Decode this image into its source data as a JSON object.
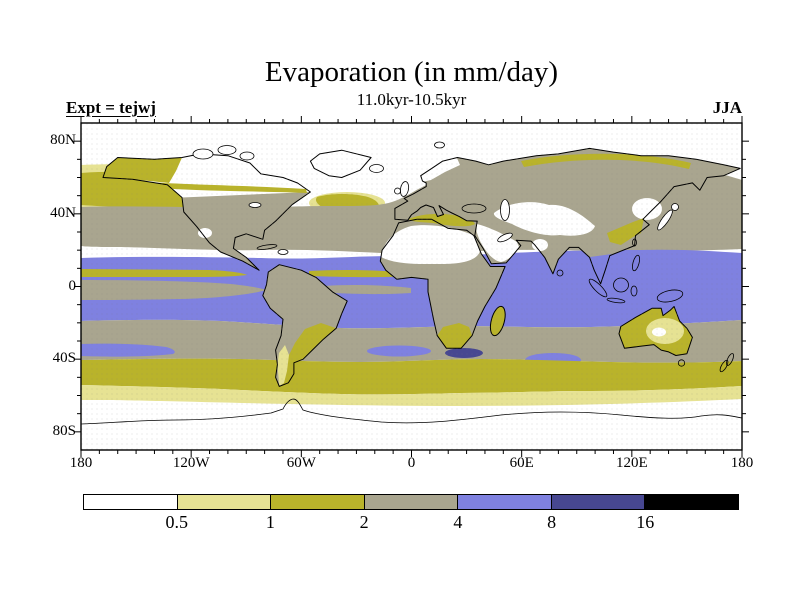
{
  "header": {
    "title": "Evaporation (in mm/day)",
    "subtitle": "11.0kyr-10.5kyr",
    "experiment_label": "Expt = tejwj",
    "season": "JJA"
  },
  "axes": {
    "lat_ticks": [
      {
        "label": "80N",
        "deg": 80
      },
      {
        "label": "40N",
        "deg": 40
      },
      {
        "label": "0",
        "deg": 0
      },
      {
        "label": "40S",
        "deg": -40
      },
      {
        "label": "80S",
        "deg": -80
      }
    ],
    "lon_ticks": [
      {
        "label": "180",
        "deg": -180
      },
      {
        "label": "120W",
        "deg": -120
      },
      {
        "label": "60W",
        "deg": -60
      },
      {
        "label": "0",
        "deg": 0
      },
      {
        "label": "60E",
        "deg": 60
      },
      {
        "label": "120E",
        "deg": 120
      },
      {
        "label": "180",
        "deg": 180
      }
    ]
  },
  "colorbar": {
    "labels": [
      "0.5",
      "1",
      "2",
      "4",
      "8",
      "16"
    ],
    "segments": [
      {
        "range": "< 0.5",
        "color": "#ffffff"
      },
      {
        "range": "0.5-1",
        "color": "#e6e293"
      },
      {
        "range": "1-2",
        "color": "#b9b32b"
      },
      {
        "range": "2-4",
        "color": "#a9a58f"
      },
      {
        "range": "4-8",
        "color": "#7f81e0"
      },
      {
        "range": "8-16",
        "color": "#474791"
      },
      {
        "range": "> 16",
        "color": "#000000"
      }
    ]
  },
  "palette": {
    "white": "#ffffff",
    "pale": "#e6e293",
    "olive": "#b9b32b",
    "gray": "#a9a58f",
    "blue": "#7f81e0",
    "darkblue": "#474791",
    "black": "#000000"
  },
  "chart_data": {
    "type": "heatmap",
    "subtype": "filled-contour-world-map",
    "title": "Evaporation (in mm/day)",
    "subtitle": "11.0kyr-10.5kyr",
    "variable": "Evaporation",
    "units": "mm/day",
    "experiment": "tejwj",
    "season": "JJA",
    "projection": "equirectangular",
    "lon_range": [
      -180,
      180
    ],
    "lat_range": [
      -90,
      90
    ],
    "contour_levels": [
      0.5,
      1,
      2,
      4,
      8,
      16
    ],
    "level_colors": [
      "#ffffff",
      "#e6e293",
      "#b9b32b",
      "#a9a58f",
      "#7f81e0",
      "#474791",
      "#000000"
    ],
    "legend_position": "bottom",
    "grid": false,
    "zonal_summary": [
      {
        "lat_band": "90N-65N (Arctic, Greenland, polar ocean)",
        "value_mm_day": "< 0.5"
      },
      {
        "lat_band": "65N-45N North Pacific / Bering / Okhotsk",
        "value_mm_day": "0.5-2 (pale yellow to olive)"
      },
      {
        "lat_band": "60N-45N Siberia, Canada, Europe interiors",
        "value_mm_day": "2-4 (gray) with 1-2 fringes"
      },
      {
        "lat_band": "45N-20N mid-latitude oceans and continents (USA, Eurasia)",
        "value_mm_day": "2-4 (gray)"
      },
      {
        "lat_band": "Sahara, Arabia, Central Asia, Tibet deserts",
        "value_mm_day": "< 0.5 (white)"
      },
      {
        "lat_band": "18N-20S tropical oceans (Pacific, Atlantic, Indian)",
        "value_mm_day": "4-8 (blue)"
      },
      {
        "lat_band": "Eastern equatorial Pacific cold tongue",
        "value_mm_day": "1-4 (olive/gray strip)"
      },
      {
        "lat_band": "20S-40S subtropical oceans",
        "value_mm_day": "2-4 (gray) with local 4-8 patches"
      },
      {
        "lat_band": "Agulhas region south of South Africa",
        "value_mm_day": "8-16 (dark blue patch)"
      },
      {
        "lat_band": "40S-57S Southern Ocean",
        "value_mm_day": "1-2 (olive band)"
      },
      {
        "lat_band": "57S-63S",
        "value_mm_day": "0.5-1 (pale yellow)"
      },
      {
        "lat_band": "63S-90S Antarctica",
        "value_mm_day": "< 0.5 (white)"
      }
    ]
  }
}
